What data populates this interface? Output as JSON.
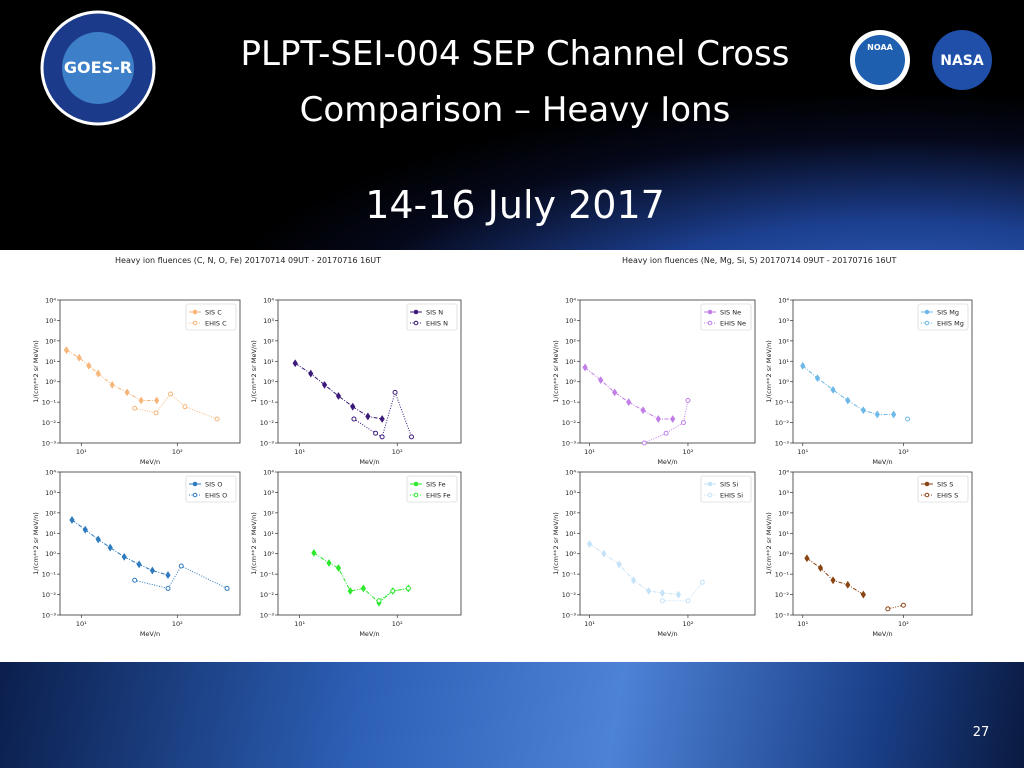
{
  "slide": {
    "title_line1": "PLPT-SEI-004 SEP Channel Cross",
    "title_line2": "Comparison – Heavy Ions",
    "subtitle": "14-16 July 2017",
    "page_number": "27",
    "logo_goes": "GOES-R",
    "logo_noaa": "NOAA",
    "logo_nasa": "NASA",
    "figure_titles": [
      "Heavy ion fluences (C, N, O, Fe) 20170714 09UT - 20170716 16UT",
      "Heavy ion fluences (Ne, Mg, Si, S) 20170714 09UT - 20170716 16UT"
    ]
  },
  "chart_data": [
    {
      "type": "line",
      "xlabel": "MeV/n",
      "ylabel": "1/(cm**2 sr MeV/n)",
      "xlog": true,
      "ylog": true,
      "legend": "upper right",
      "xlim": [
        6,
        450
      ],
      "ylim": [
        0.001,
        10000
      ],
      "xticks": [
        {
          "value": 10,
          "label": "10¹"
        },
        {
          "value": 100,
          "label": "10²"
        }
      ],
      "yticks": [
        {
          "value": 0.001,
          "label": "10⁻³"
        },
        {
          "value": 0.01,
          "label": "10⁻²"
        },
        {
          "value": 0.1,
          "label": "10⁻¹"
        },
        {
          "value": 1,
          "label": "10⁰"
        },
        {
          "value": 10,
          "label": "10¹"
        },
        {
          "value": 100,
          "label": "10²"
        },
        {
          "value": 1000,
          "label": "10³"
        },
        {
          "value": 10000,
          "label": "10⁴"
        }
      ],
      "series": [
        {
          "name": "SIS C",
          "color": "#f6b67a",
          "linestyle": "dashed",
          "marker": "diamond",
          "x": [
            7,
            9.5,
            12,
            15,
            21,
            30,
            42,
            61
          ],
          "values": [
            35,
            15,
            6,
            2.5,
            0.7,
            0.3,
            0.12,
            0.12
          ]
        },
        {
          "name": "EHIS C",
          "color": "#f6b67a",
          "linestyle": "dotted",
          "marker": "circle",
          "x": [
            36,
            60,
            85,
            120,
            260
          ],
          "values": [
            0.05,
            0.03,
            0.25,
            0.06,
            0.015
          ]
        }
      ]
    },
    {
      "type": "line",
      "xlabel": "MeV/n",
      "ylabel": "1/(cm**2 sr MeV/n)",
      "xlog": true,
      "ylog": true,
      "legend": "upper right",
      "xlim": [
        6,
        450
      ],
      "ylim": [
        0.001,
        10000
      ],
      "xticks": [
        {
          "value": 10,
          "label": "10¹"
        },
        {
          "value": 100,
          "label": "10²"
        }
      ],
      "yticks": [
        {
          "value": 0.001,
          "label": "10⁻³"
        },
        {
          "value": 0.01,
          "label": "10⁻²"
        },
        {
          "value": 0.1,
          "label": "10⁻¹"
        },
        {
          "value": 1,
          "label": "10⁰"
        },
        {
          "value": 10,
          "label": "10¹"
        },
        {
          "value": 100,
          "label": "10²"
        },
        {
          "value": 1000,
          "label": "10³"
        },
        {
          "value": 10000,
          "label": "10⁴"
        }
      ],
      "series": [
        {
          "name": "SIS N",
          "color": "#3b1a7a",
          "linestyle": "dashed",
          "marker": "diamond",
          "x": [
            9,
            13,
            18,
            25,
            35,
            50,
            70
          ],
          "values": [
            8,
            2.5,
            0.7,
            0.2,
            0.06,
            0.02,
            0.015
          ]
        },
        {
          "name": "EHIS N",
          "color": "#3b1a7a",
          "linestyle": "dotted",
          "marker": "circle",
          "x": [
            36,
            60,
            70,
            95,
            140
          ],
          "values": [
            0.015,
            0.003,
            0.002,
            0.3,
            0.002
          ]
        }
      ]
    },
    {
      "type": "line",
      "xlabel": "MeV/n",
      "ylabel": "1/(cm**2 sr MeV/n)",
      "xlog": true,
      "ylog": true,
      "legend": "upper right",
      "xlim": [
        6,
        450
      ],
      "ylim": [
        0.001,
        10000
      ],
      "xticks": [
        {
          "value": 10,
          "label": "10¹"
        },
        {
          "value": 100,
          "label": "10²"
        }
      ],
      "yticks": [
        {
          "value": 0.001,
          "label": "10⁻³"
        },
        {
          "value": 0.01,
          "label": "10⁻²"
        },
        {
          "value": 0.1,
          "label": "10⁻¹"
        },
        {
          "value": 1,
          "label": "10⁰"
        },
        {
          "value": 10,
          "label": "10¹"
        },
        {
          "value": 100,
          "label": "10²"
        },
        {
          "value": 1000,
          "label": "10³"
        },
        {
          "value": 10000,
          "label": "10⁴"
        }
      ],
      "series": [
        {
          "name": "SIS O",
          "color": "#2f7bbf",
          "linestyle": "dashed",
          "marker": "diamond",
          "x": [
            8,
            11,
            15,
            20,
            28,
            40,
            55,
            80
          ],
          "values": [
            45,
            15,
            5,
            2,
            0.7,
            0.3,
            0.15,
            0.09
          ]
        },
        {
          "name": "EHIS O",
          "color": "#2f7bbf",
          "linestyle": "dotted",
          "marker": "circle",
          "x": [
            36,
            80,
            110,
            330
          ],
          "values": [
            0.05,
            0.02,
            0.25,
            0.02
          ]
        }
      ]
    },
    {
      "type": "line",
      "xlabel": "MeV/n",
      "ylabel": "1/(cm**2 sr MeV/n)",
      "xlog": true,
      "ylog": true,
      "legend": "upper right",
      "xlim": [
        6,
        450
      ],
      "ylim": [
        0.001,
        10000
      ],
      "xticks": [
        {
          "value": 10,
          "label": "10¹"
        },
        {
          "value": 100,
          "label": "10²"
        }
      ],
      "yticks": [
        {
          "value": 0.001,
          "label": "10⁻³"
        },
        {
          "value": 0.01,
          "label": "10⁻²"
        },
        {
          "value": 0.1,
          "label": "10⁻¹"
        },
        {
          "value": 1,
          "label": "10⁰"
        },
        {
          "value": 10,
          "label": "10¹"
        },
        {
          "value": 100,
          "label": "10²"
        },
        {
          "value": 1000,
          "label": "10³"
        },
        {
          "value": 10000,
          "label": "10⁴"
        }
      ],
      "series": [
        {
          "name": "SIS Fe",
          "color": "#2ee82e",
          "linestyle": "dashed",
          "marker": "diamond",
          "x": [
            14,
            20,
            25,
            33,
            45,
            65,
            90,
            130
          ],
          "values": [
            1.1,
            0.35,
            0.2,
            0.015,
            0.02,
            0.004,
            0.015,
            0.02
          ]
        },
        {
          "name": "EHIS Fe",
          "color": "#2ee82e",
          "linestyle": "dotted",
          "marker": "circle",
          "x": [
            65,
            90,
            130
          ],
          "values": [
            0.005,
            0.015,
            0.02
          ]
        }
      ]
    },
    {
      "type": "line",
      "xlabel": "MeV/n",
      "ylabel": "1/(cm**2 sr MeV/n)",
      "xlog": true,
      "ylog": true,
      "legend": "upper right",
      "xlim": [
        8,
        480
      ],
      "ylim": [
        0.001,
        10000
      ],
      "xticks": [
        {
          "value": 10,
          "label": "10¹"
        },
        {
          "value": 100,
          "label": "10²"
        }
      ],
      "yticks": [
        {
          "value": 0.001,
          "label": "10⁻³"
        },
        {
          "value": 0.01,
          "label": "10⁻²"
        },
        {
          "value": 0.1,
          "label": "10⁻¹"
        },
        {
          "value": 1,
          "label": "10⁰"
        },
        {
          "value": 10,
          "label": "10¹"
        },
        {
          "value": 100,
          "label": "10²"
        },
        {
          "value": 1000,
          "label": "10³"
        },
        {
          "value": 10000,
          "label": "10⁴"
        }
      ],
      "series": [
        {
          "name": "SIS Ne",
          "color": "#c17ee8",
          "linestyle": "dashed",
          "marker": "diamond",
          "x": [
            9,
            13,
            18,
            25,
            35,
            50,
            70
          ],
          "values": [
            5,
            1.2,
            0.3,
            0.1,
            0.04,
            0.015,
            0.015
          ]
        },
        {
          "name": "EHIS Ne",
          "color": "#c17ee8",
          "linestyle": "dotted",
          "marker": "circle",
          "x": [
            36,
            60,
            90,
            100
          ],
          "values": [
            0.001,
            0.003,
            0.01,
            0.12
          ]
        }
      ]
    },
    {
      "type": "line",
      "xlabel": "MeV/n",
      "ylabel": "1/(cm**2 sr MeV/n)",
      "xlog": true,
      "ylog": true,
      "legend": "upper right",
      "xlim": [
        8,
        480
      ],
      "ylim": [
        0.001,
        10000
      ],
      "xticks": [
        {
          "value": 10,
          "label": "10¹"
        },
        {
          "value": 100,
          "label": "10²"
        }
      ],
      "yticks": [
        {
          "value": 0.001,
          "label": "10⁻³"
        },
        {
          "value": 0.01,
          "label": "10⁻²"
        },
        {
          "value": 0.1,
          "label": "10⁻¹"
        },
        {
          "value": 1,
          "label": "10⁰"
        },
        {
          "value": 10,
          "label": "10¹"
        },
        {
          "value": 100,
          "label": "10²"
        },
        {
          "value": 1000,
          "label": "10³"
        },
        {
          "value": 10000,
          "label": "10⁴"
        }
      ],
      "series": [
        {
          "name": "SIS Mg",
          "color": "#6cb8e8",
          "linestyle": "dashed",
          "marker": "diamond",
          "x": [
            10,
            14,
            20,
            28,
            40,
            55,
            80
          ],
          "values": [
            6,
            1.5,
            0.4,
            0.12,
            0.04,
            0.025,
            0.025
          ]
        },
        {
          "name": "EHIS Mg",
          "color": "#6cb8e8",
          "linestyle": "dotted",
          "marker": "circle",
          "x": [
            110
          ],
          "values": [
            0.015
          ]
        }
      ]
    },
    {
      "type": "line",
      "xlabel": "MeV/n",
      "ylabel": "1/(cm**2 sr MeV/n)",
      "xlog": true,
      "ylog": true,
      "legend": "upper right",
      "xlim": [
        8,
        480
      ],
      "ylim": [
        0.001,
        10000
      ],
      "xticks": [
        {
          "value": 10,
          "label": "10¹"
        },
        {
          "value": 100,
          "label": "10²"
        }
      ],
      "yticks": [
        {
          "value": 0.001,
          "label": "10⁻³"
        },
        {
          "value": 0.01,
          "label": "10⁻²"
        },
        {
          "value": 0.1,
          "label": "10⁻¹"
        },
        {
          "value": 1,
          "label": "10⁰"
        },
        {
          "value": 10,
          "label": "10¹"
        },
        {
          "value": 100,
          "label": "10²"
        },
        {
          "value": 1000,
          "label": "10³"
        },
        {
          "value": 10000,
          "label": "10⁴"
        }
      ],
      "series": [
        {
          "name": "SIS Si",
          "color": "#c4e2f8",
          "linestyle": "dashed",
          "marker": "diamond",
          "x": [
            10,
            14,
            20,
            28,
            40,
            55,
            80
          ],
          "values": [
            3,
            1,
            0.3,
            0.05,
            0.015,
            0.012,
            0.01
          ]
        },
        {
          "name": "EHIS Si",
          "color": "#c4e2f8",
          "linestyle": "dotted",
          "marker": "circle",
          "x": [
            55,
            100,
            140
          ],
          "values": [
            0.005,
            0.005,
            0.04
          ]
        }
      ]
    },
    {
      "type": "line",
      "xlabel": "MeV/n",
      "ylabel": "1/(cm**2 sr MeV/n)",
      "xlog": true,
      "ylog": true,
      "legend": "upper right",
      "xlim": [
        8,
        480
      ],
      "ylim": [
        0.001,
        10000
      ],
      "xticks": [
        {
          "value": 10,
          "label": "10¹"
        },
        {
          "value": 100,
          "label": "10²"
        }
      ],
      "yticks": [
        {
          "value": 0.001,
          "label": "10⁻³"
        },
        {
          "value": 0.01,
          "label": "10⁻²"
        },
        {
          "value": 0.1,
          "label": "10⁻¹"
        },
        {
          "value": 1,
          "label": "10⁰"
        },
        {
          "value": 10,
          "label": "10¹"
        },
        {
          "value": 100,
          "label": "10²"
        },
        {
          "value": 1000,
          "label": "10³"
        },
        {
          "value": 10000,
          "label": "10⁴"
        }
      ],
      "series": [
        {
          "name": "SIS S",
          "color": "#8b4513",
          "linestyle": "dashed",
          "marker": "diamond",
          "x": [
            11,
            15,
            20,
            28,
            40
          ],
          "values": [
            0.6,
            0.2,
            0.05,
            0.03,
            0.01
          ]
        },
        {
          "name": "EHIS S",
          "color": "#8b4513",
          "linestyle": "dotted",
          "marker": "circle",
          "x": [
            70,
            100
          ],
          "values": [
            0.002,
            0.003
          ]
        }
      ]
    }
  ]
}
